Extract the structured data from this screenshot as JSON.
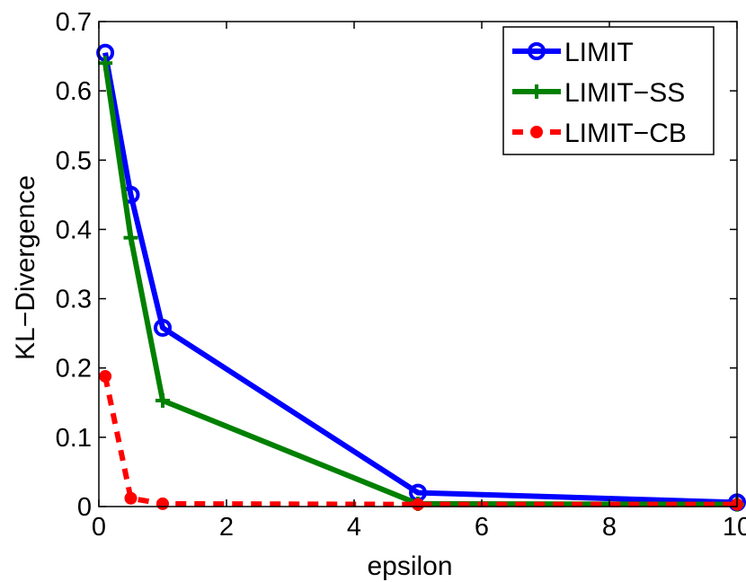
{
  "chart_data": {
    "type": "line",
    "title": "",
    "xlabel": "epsilon",
    "ylabel": "KL−Divergence",
    "xlim": [
      0,
      10
    ],
    "ylim": [
      0,
      0.7
    ],
    "xticks": [
      0,
      2,
      4,
      6,
      8,
      10
    ],
    "xtick_labels": [
      "0",
      "2",
      "4",
      "6",
      "8",
      "10"
    ],
    "yticks": [
      0,
      0.1,
      0.2,
      0.3,
      0.4,
      0.5,
      0.6,
      0.7
    ],
    "ytick_labels": [
      "0",
      "0.1",
      "0.2",
      "0.3",
      "0.4",
      "0.5",
      "0.6",
      "0.7"
    ],
    "grid": false,
    "legend_position": "top-right",
    "x": [
      0.1,
      0.5,
      1,
      5,
      10
    ],
    "series": [
      {
        "name": "LIMIT",
        "values": [
          0.655,
          0.45,
          0.258,
          0.02,
          0.006
        ],
        "color": "#0000ff",
        "marker": "circle",
        "linestyle": "solid"
      },
      {
        "name": "LIMIT−SS",
        "values": [
          0.64,
          0.388,
          0.153,
          0.004,
          0.003
        ],
        "color": "#008000",
        "marker": "plus",
        "linestyle": "solid"
      },
      {
        "name": "LIMIT−CB",
        "values": [
          0.188,
          0.012,
          0.004,
          0.003,
          0.003
        ],
        "color": "#ff0000",
        "marker": "dot",
        "linestyle": "dashed"
      }
    ]
  }
}
